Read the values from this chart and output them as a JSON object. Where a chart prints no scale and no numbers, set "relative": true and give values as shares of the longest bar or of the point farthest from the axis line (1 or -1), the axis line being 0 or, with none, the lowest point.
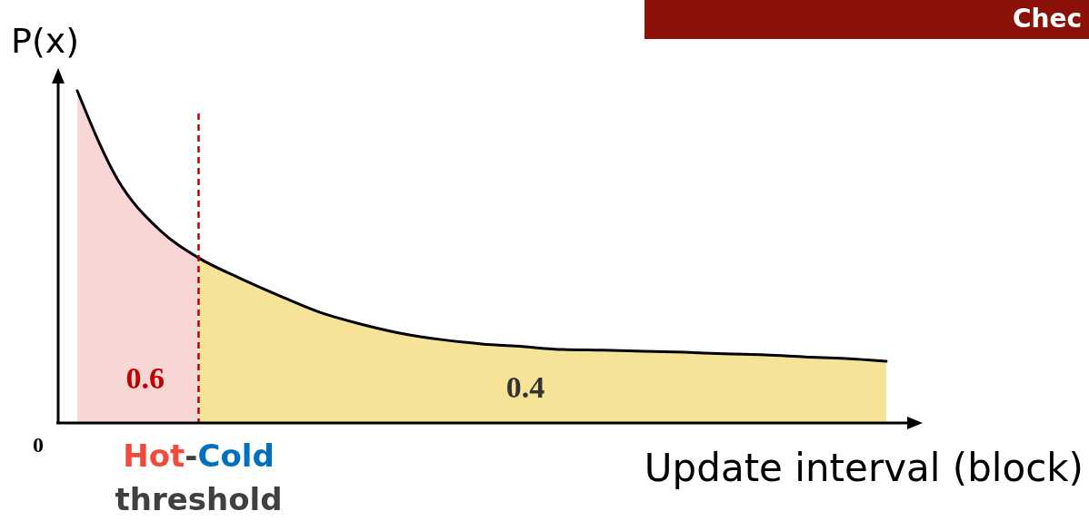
{
  "chart_data": {
    "type": "area",
    "title": "Chec",
    "relative": true,
    "ylabel": "P(x)",
    "xlabel": "Update interval (block)",
    "categories": [
      null,
      null,
      null,
      null,
      null,
      null,
      null,
      null,
      null,
      null,
      null,
      null,
      null,
      null,
      null,
      null,
      null,
      null,
      null,
      null,
      null
    ],
    "series": [
      {
        "color": "#f9d6d6",
        "values": [
          1.0,
          0.732,
          0.585,
          0.497,
          null,
          null,
          null,
          null,
          null,
          null,
          null,
          null,
          null,
          null,
          null,
          null,
          null,
          null,
          null,
          null,
          null
        ]
      },
      {
        "color": "#f5e498",
        "values": [
          null,
          null,
          null,
          0.497,
          0.437,
          0.383,
          0.333,
          0.298,
          0.27,
          0.251,
          0.238,
          0.23,
          0.221,
          0.219,
          0.216,
          0.213,
          0.208,
          0.205,
          0.199,
          0.194,
          0.186
        ]
      },
      {
        "type": "line",
        "color": "#000000",
        "values": [
          1.0,
          0.732,
          0.585,
          0.497,
          0.437,
          0.383,
          0.333,
          0.298,
          0.27,
          0.251,
          0.238,
          0.23,
          0.221,
          0.219,
          0.216,
          0.213,
          0.208,
          0.205,
          0.199,
          0.194,
          0.186
        ]
      }
    ],
    "annotations": [
      "0.6",
      "0.4",
      "0",
      "Hot-Cold threshold"
    ]
  }
}
